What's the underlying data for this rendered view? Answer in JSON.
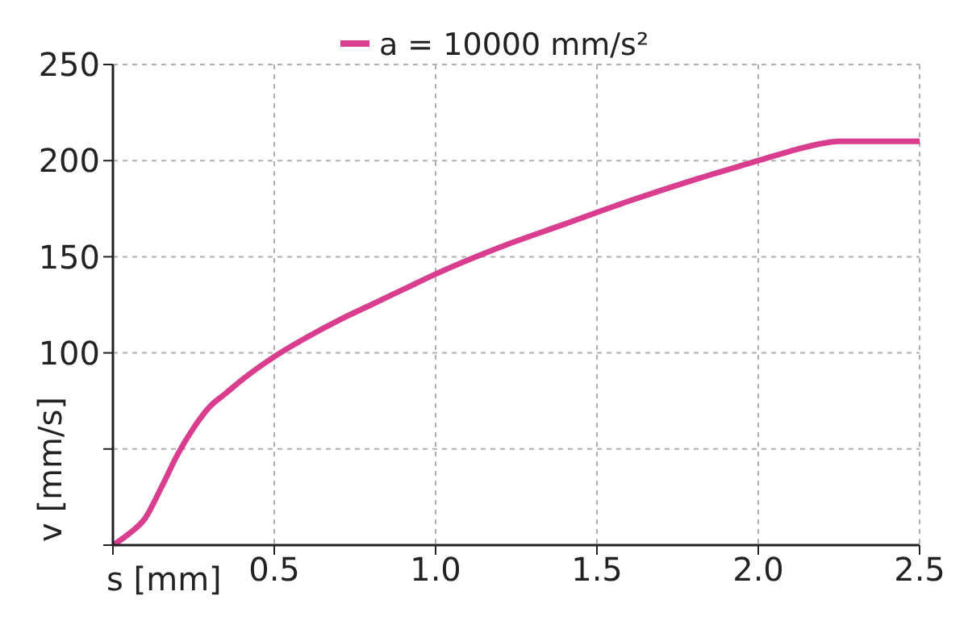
{
  "chart_data": {
    "type": "line",
    "xlabel": "s [mm]",
    "ylabel": "v [mm/s]",
    "x": [
      0,
      0.05,
      0.1,
      0.15,
      0.2,
      0.25,
      0.3,
      0.35,
      0.4,
      0.5,
      0.6,
      0.7,
      0.8,
      0.9,
      1.0,
      1.2,
      1.4,
      1.6,
      1.8,
      2.0,
      2.1,
      2.2,
      2.25,
      2.3,
      2.5
    ],
    "series": [
      {
        "name": "a = 10000 mm/s²",
        "color": "#d93d8e",
        "values": [
          0,
          6,
          14,
          30,
          47,
          61,
          72,
          79,
          86,
          98,
          108,
          117,
          125,
          133,
          141,
          155,
          167,
          179,
          190,
          200,
          205,
          209,
          210,
          210,
          210
        ]
      }
    ],
    "xlim": [
      0,
      2.5
    ],
    "xticks": [
      {
        "value": 0,
        "label": null
      },
      0.5,
      {
        "value": 1,
        "label": "1.0"
      },
      1.5,
      {
        "value": 2,
        "label": "2.0"
      },
      2.5
    ],
    "ylim": [
      0,
      250
    ],
    "yticks": [
      {
        "value": 0,
        "label": null
      },
      {
        "value": 50,
        "label": null
      },
      100,
      150,
      200,
      250
    ],
    "grid": true,
    "legend": "top",
    "marker": "none",
    "line_style": "solid"
  }
}
